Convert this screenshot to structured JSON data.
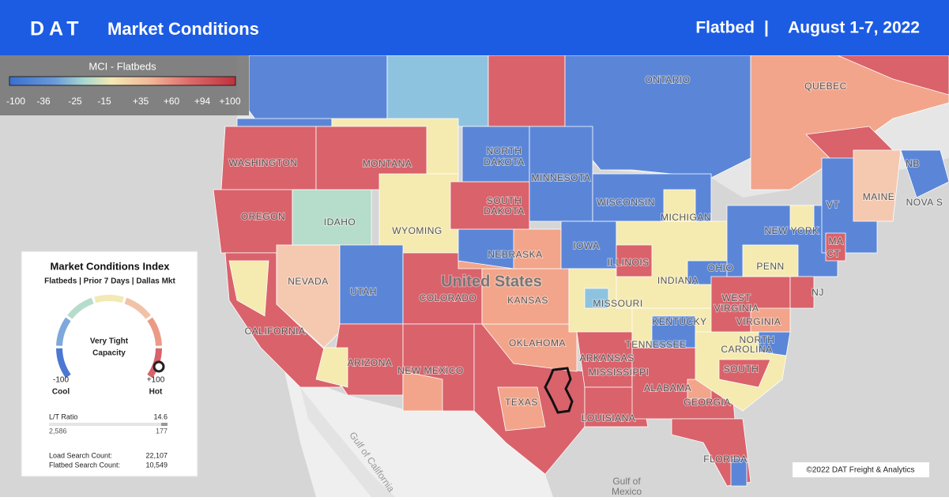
{
  "header": {
    "logo": "DAT",
    "title": "Market Conditions",
    "product": "Flatbed",
    "separator": "|",
    "date": "August 1-7, 2022"
  },
  "legend": {
    "title": "MCI - Flatbeds",
    "labels": [
      "-100",
      "-36",
      "-25",
      "-15",
      "+35",
      "+60",
      "+94",
      "+100"
    ]
  },
  "panel": {
    "title": "Market Conditions Index",
    "subtitle": "Flatbeds | Prior 7 Days | Dallas Mkt",
    "gauge_text": [
      "Very Tight",
      "Capacity"
    ],
    "min_label": "-100",
    "min_caption": "Cool",
    "max_label": "+100",
    "max_caption": "Hot",
    "lt_label": "L/T Ratio",
    "lt_value": "14.6",
    "loads": "2,586",
    "trucks": "177",
    "load_search_label": "Load Search Count:",
    "load_search_value": "22,107",
    "flatbed_search_label": "Flatbed Search Count:",
    "flatbed_search_value": "10,549"
  },
  "map_labels": [
    "WASHINGTON",
    "OREGON",
    "IDAHO",
    "MONTANA",
    "WYOMING",
    "NEVADA",
    "UTAH",
    "COLORADO",
    "CALIFORNIA",
    "ARIZONA",
    "NEW MEXICO",
    "TEXAS",
    "OKLAHOMA",
    "KANSAS",
    "NEBRASKA",
    "SOUTH",
    "DAKOTA",
    "NORTH",
    "DAKOTA",
    "MINNESOTA",
    "WISCONSIN",
    "IOWA",
    "MISSOURI",
    "ILLINOIS",
    "INDIANA",
    "OHIO",
    "MICHIGAN",
    "KENTUCKY",
    "TENNESSEE",
    "ARKANSAS",
    "MISSISSIPPI",
    "ALABAMA",
    "GEORGIA",
    "LOUISIANA",
    "FLORIDA",
    "SOUTH",
    "NORTH",
    "CAROLINA",
    "WEST",
    "VIRGINIA",
    "VIRGINIA",
    "PENN",
    "NEW YORK",
    "VT",
    "MA",
    "CT",
    "NJ",
    "MAINE",
    "NB",
    "NOVA S",
    "QUEBEC",
    "ONTARIO"
  ],
  "country_label": "United States",
  "gulf_mexico": [
    "Gulf of",
    "Mexico"
  ],
  "gulf_california": "Gulf of California",
  "copyright": "©2022 DAT Freight & Analytics"
}
